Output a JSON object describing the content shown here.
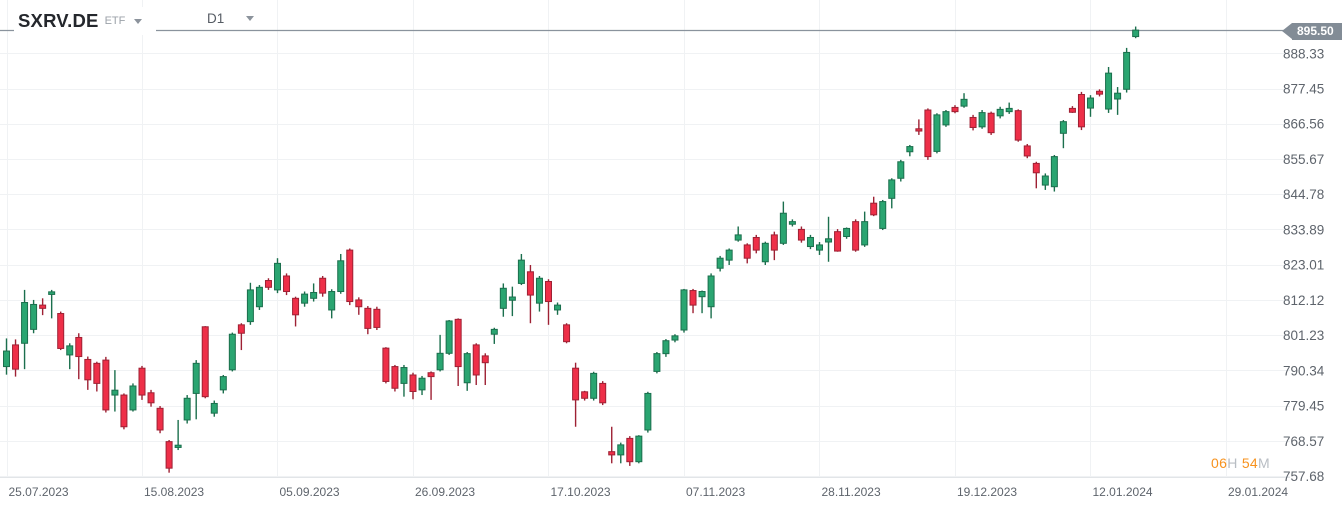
{
  "header": {
    "symbol": "SXRV.DE",
    "instrument_type": "ETF",
    "timeframe": "D1"
  },
  "price_badge": {
    "value": "895.50"
  },
  "countdown": {
    "hours": "06",
    "hours_unit": "H",
    "minutes": "54",
    "minutes_unit": "M"
  },
  "colors": {
    "background": "#FFFFFF",
    "up_fill": "#2AA571",
    "up_border": "#1B6F4D",
    "down_fill": "#EE2F48",
    "down_border": "#9E2134",
    "grid": "#F0F2F4",
    "axis_line": "#E2E5E8",
    "axis_text": "#5E646C",
    "price_line": "#8A939D",
    "badge_bg": "#828C96",
    "badge_text": "#FFFFFF",
    "countdown_accent": "#F7921E",
    "countdown_muted": "#B8BDC3"
  },
  "chart_data": {
    "type": "candlestick",
    "title": "SXRV.DE ETF daily (D1) candlestick chart",
    "current_price": 895.5,
    "y_axis": {
      "ticks": [
        888.33,
        877.45,
        866.56,
        855.67,
        844.78,
        833.89,
        823.01,
        812.12,
        801.23,
        790.34,
        779.45,
        768.57,
        757.68
      ]
    },
    "x_axis": {
      "labels": [
        {
          "text": "25.07.2023",
          "bar_index": 0
        },
        {
          "text": "15.08.2023",
          "bar_index": 15
        },
        {
          "text": "05.09.2023",
          "bar_index": 30
        },
        {
          "text": "26.09.2023",
          "bar_index": 45
        },
        {
          "text": "17.10.2023",
          "bar_index": 60
        },
        {
          "text": "07.11.2023",
          "bar_index": 75
        },
        {
          "text": "28.11.2023",
          "bar_index": 90
        },
        {
          "text": "19.12.2023",
          "bar_index": 105
        },
        {
          "text": "12.01.2024",
          "bar_index": 120
        },
        {
          "text": "29.01.2024",
          "bar_index": 135
        }
      ]
    },
    "candles": [
      {
        "d": "25.07.2023",
        "o": 791.5,
        "h": 800.2,
        "l": 789.0,
        "c": 796.3
      },
      {
        "d": "26.07.2023",
        "o": 798.2,
        "h": 799.9,
        "l": 788.4,
        "c": 790.7
      },
      {
        "d": "27.07.2023",
        "o": 798.7,
        "h": 815.2,
        "l": 790.7,
        "c": 811.3
      },
      {
        "d": "28.07.2023",
        "o": 803.0,
        "h": 812.1,
        "l": 801.8,
        "c": 810.7
      },
      {
        "d": "31.07.2023",
        "o": 810.5,
        "h": 812.6,
        "l": 807.4,
        "c": 809.5
      },
      {
        "d": "01.08.2023",
        "o": 813.8,
        "h": 815.2,
        "l": 806.4,
        "c": 814.6
      },
      {
        "d": "02.08.2023",
        "o": 807.9,
        "h": 808.5,
        "l": 796.6,
        "c": 797.1
      },
      {
        "d": "03.08.2023",
        "o": 795.1,
        "h": 798.7,
        "l": 790.7,
        "c": 797.9
      },
      {
        "d": "04.08.2023",
        "o": 800.5,
        "h": 801.8,
        "l": 787.6,
        "c": 794.6
      },
      {
        "d": "07.08.2023",
        "o": 793.7,
        "h": 794.6,
        "l": 784.3,
        "c": 787.4
      },
      {
        "d": "08.08.2023",
        "o": 792.5,
        "h": 793.0,
        "l": 783.8,
        "c": 786.3
      },
      {
        "d": "09.08.2023",
        "o": 793.5,
        "h": 794.5,
        "l": 777.3,
        "c": 778.1
      },
      {
        "d": "10.08.2023",
        "o": 782.7,
        "h": 790.4,
        "l": 777.6,
        "c": 784.2
      },
      {
        "d": "11.08.2023",
        "o": 782.7,
        "h": 783.2,
        "l": 772.1,
        "c": 772.9
      },
      {
        "d": "14.08.2023",
        "o": 778.1,
        "h": 786.3,
        "l": 777.6,
        "c": 785.5
      },
      {
        "d": "15.08.2023",
        "o": 791.0,
        "h": 791.7,
        "l": 781.2,
        "c": 782.7
      },
      {
        "d": "16.08.2023",
        "o": 783.4,
        "h": 784.3,
        "l": 779.1,
        "c": 780.3
      },
      {
        "d": "17.08.2023",
        "o": 778.6,
        "h": 779.3,
        "l": 770.9,
        "c": 771.9
      },
      {
        "d": "18.08.2023",
        "o": 768.3,
        "h": 768.8,
        "l": 758.7,
        "c": 760.1
      },
      {
        "d": "21.08.2023",
        "o": 766.5,
        "h": 775.0,
        "l": 765.7,
        "c": 767.2
      },
      {
        "d": "22.08.2023",
        "o": 775.0,
        "h": 782.7,
        "l": 773.9,
        "c": 781.7
      },
      {
        "d": "23.08.2023",
        "o": 783.2,
        "h": 793.5,
        "l": 775.2,
        "c": 792.5
      },
      {
        "d": "24.08.2023",
        "o": 803.8,
        "h": 804.0,
        "l": 781.7,
        "c": 782.2
      },
      {
        "d": "25.08.2023",
        "o": 777.1,
        "h": 781.0,
        "l": 776.0,
        "c": 780.1
      },
      {
        "d": "28.08.2023",
        "o": 784.3,
        "h": 788.9,
        "l": 783.2,
        "c": 788.4
      },
      {
        "d": "29.08.2023",
        "o": 790.5,
        "h": 802.0,
        "l": 790.0,
        "c": 801.5
      },
      {
        "d": "30.08.2023",
        "o": 804.4,
        "h": 804.9,
        "l": 796.6,
        "c": 801.8
      },
      {
        "d": "31.08.2023",
        "o": 805.4,
        "h": 817.4,
        "l": 804.4,
        "c": 815.2
      },
      {
        "d": "01.09.2023",
        "o": 810.0,
        "h": 816.7,
        "l": 809.0,
        "c": 816.0
      },
      {
        "d": "04.09.2023",
        "o": 818.1,
        "h": 818.8,
        "l": 815.2,
        "c": 816.0
      },
      {
        "d": "05.09.2023",
        "o": 815.2,
        "h": 825.0,
        "l": 814.2,
        "c": 823.4
      },
      {
        "d": "06.09.2023",
        "o": 819.5,
        "h": 820.3,
        "l": 813.6,
        "c": 814.7
      },
      {
        "d": "07.09.2023",
        "o": 812.6,
        "h": 813.1,
        "l": 803.9,
        "c": 807.5
      },
      {
        "d": "08.09.2023",
        "o": 811.1,
        "h": 814.7,
        "l": 810.0,
        "c": 813.9
      },
      {
        "d": "11.09.2023",
        "o": 812.6,
        "h": 817.2,
        "l": 811.6,
        "c": 814.4
      },
      {
        "d": "12.09.2023",
        "o": 818.8,
        "h": 819.5,
        "l": 813.1,
        "c": 814.2
      },
      {
        "d": "13.09.2023",
        "o": 809.0,
        "h": 815.4,
        "l": 806.4,
        "c": 814.7
      },
      {
        "d": "14.09.2023",
        "o": 814.7,
        "h": 826.3,
        "l": 814.0,
        "c": 824.2
      },
      {
        "d": "15.09.2023",
        "o": 827.5,
        "h": 828.0,
        "l": 810.5,
        "c": 811.6
      },
      {
        "d": "18.09.2023",
        "o": 812.1,
        "h": 812.9,
        "l": 807.5,
        "c": 810.0
      },
      {
        "d": "19.09.2023",
        "o": 809.5,
        "h": 810.2,
        "l": 801.5,
        "c": 803.3
      },
      {
        "d": "20.09.2023",
        "o": 809.2,
        "h": 810.0,
        "l": 802.8,
        "c": 803.6
      },
      {
        "d": "21.09.2023",
        "o": 797.2,
        "h": 797.5,
        "l": 786.3,
        "c": 786.9
      },
      {
        "d": "22.09.2023",
        "o": 791.5,
        "h": 792.0,
        "l": 783.8,
        "c": 784.8
      },
      {
        "d": "25.09.2023",
        "o": 786.3,
        "h": 792.0,
        "l": 782.2,
        "c": 791.2
      },
      {
        "d": "26.09.2023",
        "o": 788.9,
        "h": 789.6,
        "l": 781.4,
        "c": 783.8
      },
      {
        "d": "27.09.2023",
        "o": 784.3,
        "h": 788.6,
        "l": 782.7,
        "c": 787.9
      },
      {
        "d": "28.09.2023",
        "o": 789.6,
        "h": 790.0,
        "l": 781.2,
        "c": 788.4
      },
      {
        "d": "29.09.2023",
        "o": 790.5,
        "h": 801.3,
        "l": 790.0,
        "c": 795.6
      },
      {
        "d": "02.10.2023",
        "o": 795.6,
        "h": 805.9,
        "l": 795.1,
        "c": 805.6
      },
      {
        "d": "03.10.2023",
        "o": 806.1,
        "h": 806.4,
        "l": 785.5,
        "c": 791.5
      },
      {
        "d": "04.10.2023",
        "o": 786.5,
        "h": 796.0,
        "l": 784.0,
        "c": 795.5
      },
      {
        "d": "05.10.2023",
        "o": 798.2,
        "h": 798.7,
        "l": 785.8,
        "c": 788.9
      },
      {
        "d": "06.10.2023",
        "o": 794.8,
        "h": 795.6,
        "l": 785.8,
        "c": 792.7
      },
      {
        "d": "09.10.2023",
        "o": 801.5,
        "h": 803.5,
        "l": 798.5,
        "c": 803.0
      },
      {
        "d": "10.10.2023",
        "o": 809.5,
        "h": 817.2,
        "l": 806.9,
        "c": 815.7
      },
      {
        "d": "11.10.2023",
        "o": 812.0,
        "h": 816.2,
        "l": 807.1,
        "c": 813.0
      },
      {
        "d": "12.10.2023",
        "o": 817.2,
        "h": 826.3,
        "l": 816.7,
        "c": 824.4
      },
      {
        "d": "13.10.2023",
        "o": 820.8,
        "h": 822.9,
        "l": 804.9,
        "c": 813.6
      },
      {
        "d": "16.10.2023",
        "o": 811.1,
        "h": 819.5,
        "l": 808.5,
        "c": 818.8
      },
      {
        "d": "17.10.2023",
        "o": 817.8,
        "h": 818.5,
        "l": 804.4,
        "c": 811.6
      },
      {
        "d": "18.10.2023",
        "o": 809.0,
        "h": 811.3,
        "l": 807.5,
        "c": 810.5
      },
      {
        "d": "19.10.2023",
        "o": 804.4,
        "h": 804.9,
        "l": 798.7,
        "c": 799.2
      },
      {
        "d": "20.10.2023",
        "o": 791.0,
        "h": 792.7,
        "l": 772.9,
        "c": 781.2
      },
      {
        "d": "23.10.2023",
        "o": 783.7,
        "h": 784.0,
        "l": 781.0,
        "c": 781.7
      },
      {
        "d": "24.10.2023",
        "o": 781.7,
        "h": 789.9,
        "l": 781.0,
        "c": 789.4
      },
      {
        "d": "25.10.2023",
        "o": 786.3,
        "h": 787.0,
        "l": 779.6,
        "c": 780.3
      },
      {
        "d": "26.10.2023",
        "o": 765.2,
        "h": 772.9,
        "l": 761.6,
        "c": 764.2
      },
      {
        "d": "27.10.2023",
        "o": 764.2,
        "h": 768.0,
        "l": 761.6,
        "c": 767.3
      },
      {
        "d": "30.10.2023",
        "o": 769.3,
        "h": 770.0,
        "l": 760.8,
        "c": 762.1
      },
      {
        "d": "31.10.2023",
        "o": 762.1,
        "h": 770.3,
        "l": 761.6,
        "c": 770.0
      },
      {
        "d": "01.11.2023",
        "o": 771.9,
        "h": 783.7,
        "l": 771.1,
        "c": 783.2
      },
      {
        "d": "02.11.2023",
        "o": 790.0,
        "h": 796.0,
        "l": 789.4,
        "c": 795.5
      },
      {
        "d": "03.11.2023",
        "o": 795.5,
        "h": 800.0,
        "l": 794.5,
        "c": 799.5
      },
      {
        "d": "06.11.2023",
        "o": 799.7,
        "h": 801.5,
        "l": 799.0,
        "c": 801.0
      },
      {
        "d": "07.11.2023",
        "o": 802.8,
        "h": 815.5,
        "l": 802.0,
        "c": 815.2
      },
      {
        "d": "08.11.2023",
        "o": 815.0,
        "h": 815.5,
        "l": 808.0,
        "c": 810.5
      },
      {
        "d": "09.11.2023",
        "o": 813.1,
        "h": 815.0,
        "l": 808.0,
        "c": 814.7
      },
      {
        "d": "10.11.2023",
        "o": 810.0,
        "h": 820.3,
        "l": 806.4,
        "c": 819.5
      },
      {
        "d": "13.11.2023",
        "o": 821.9,
        "h": 825.7,
        "l": 820.9,
        "c": 825.0
      },
      {
        "d": "14.11.2023",
        "o": 824.4,
        "h": 828.0,
        "l": 822.9,
        "c": 827.5
      },
      {
        "d": "15.11.2023",
        "o": 830.6,
        "h": 834.8,
        "l": 830.1,
        "c": 832.2
      },
      {
        "d": "16.11.2023",
        "o": 829.1,
        "h": 829.6,
        "l": 823.4,
        "c": 825.0
      },
      {
        "d": "17.11.2023",
        "o": 831.4,
        "h": 832.2,
        "l": 826.5,
        "c": 827.5
      },
      {
        "d": "20.11.2023",
        "o": 823.9,
        "h": 830.1,
        "l": 822.9,
        "c": 829.6
      },
      {
        "d": "21.11.2023",
        "o": 832.2,
        "h": 833.2,
        "l": 824.4,
        "c": 827.5
      },
      {
        "d": "22.11.2023",
        "o": 829.6,
        "h": 842.5,
        "l": 829.1,
        "c": 838.9
      },
      {
        "d": "23.11.2023",
        "o": 835.5,
        "h": 837.0,
        "l": 834.8,
        "c": 836.3
      },
      {
        "d": "24.11.2023",
        "o": 833.9,
        "h": 834.8,
        "l": 829.8,
        "c": 830.6
      },
      {
        "d": "27.11.2023",
        "o": 828.6,
        "h": 832.2,
        "l": 827.8,
        "c": 831.4
      },
      {
        "d": "28.11.2023",
        "o": 827.5,
        "h": 830.0,
        "l": 826.0,
        "c": 829.1
      },
      {
        "d": "29.11.2023",
        "o": 830.0,
        "h": 837.8,
        "l": 823.9,
        "c": 831.0
      },
      {
        "d": "30.11.2023",
        "o": 833.2,
        "h": 834.0,
        "l": 827.0,
        "c": 827.2
      },
      {
        "d": "01.12.2023",
        "o": 831.7,
        "h": 834.5,
        "l": 831.0,
        "c": 834.2
      },
      {
        "d": "04.12.2023",
        "o": 836.3,
        "h": 837.0,
        "l": 827.0,
        "c": 827.5
      },
      {
        "d": "05.12.2023",
        "o": 829.1,
        "h": 839.4,
        "l": 828.5,
        "c": 836.3
      },
      {
        "d": "06.12.2023",
        "o": 842.0,
        "h": 844.0,
        "l": 838.0,
        "c": 838.4
      },
      {
        "d": "07.12.2023",
        "o": 834.2,
        "h": 843.0,
        "l": 833.7,
        "c": 842.5
      },
      {
        "d": "08.12.2023",
        "o": 843.5,
        "h": 849.7,
        "l": 840.4,
        "c": 849.2
      },
      {
        "d": "11.12.2023",
        "o": 849.7,
        "h": 855.4,
        "l": 848.7,
        "c": 854.8
      },
      {
        "d": "12.12.2023",
        "o": 857.9,
        "h": 860.0,
        "l": 856.5,
        "c": 859.5
      },
      {
        "d": "13.12.2023",
        "o": 865.0,
        "h": 867.9,
        "l": 863.1,
        "c": 864.3
      },
      {
        "d": "14.12.2023",
        "o": 870.8,
        "h": 871.3,
        "l": 855.4,
        "c": 856.4
      },
      {
        "d": "15.12.2023",
        "o": 858.0,
        "h": 869.8,
        "l": 857.4,
        "c": 869.3
      },
      {
        "d": "18.12.2023",
        "o": 866.2,
        "h": 870.8,
        "l": 865.6,
        "c": 870.3
      },
      {
        "d": "19.12.2023",
        "o": 871.6,
        "h": 872.3,
        "l": 869.8,
        "c": 870.3
      },
      {
        "d": "20.12.2023",
        "o": 872.0,
        "h": 876.0,
        "l": 871.5,
        "c": 874.1
      },
      {
        "d": "21.12.2023",
        "o": 868.5,
        "h": 869.3,
        "l": 864.5,
        "c": 865.4
      },
      {
        "d": "22.12.2023",
        "o": 865.6,
        "h": 870.8,
        "l": 865.0,
        "c": 870.0
      },
      {
        "d": "27.12.2023",
        "o": 869.8,
        "h": 870.3,
        "l": 863.1,
        "c": 863.8
      },
      {
        "d": "28.12.2023",
        "o": 869.0,
        "h": 871.8,
        "l": 868.2,
        "c": 871.0
      },
      {
        "d": "29.12.2023",
        "o": 870.3,
        "h": 873.1,
        "l": 869.6,
        "c": 871.3
      },
      {
        "d": "02.01.2024",
        "o": 870.6,
        "h": 871.0,
        "l": 861.0,
        "c": 861.5
      },
      {
        "d": "03.01.2024",
        "o": 859.7,
        "h": 860.3,
        "l": 855.9,
        "c": 856.6
      },
      {
        "d": "04.01.2024",
        "o": 854.3,
        "h": 854.8,
        "l": 846.6,
        "c": 851.4
      },
      {
        "d": "05.01.2024",
        "o": 847.6,
        "h": 851.2,
        "l": 846.1,
        "c": 850.4
      },
      {
        "d": "08.01.2024",
        "o": 847.1,
        "h": 856.9,
        "l": 845.6,
        "c": 856.4
      },
      {
        "d": "09.01.2024",
        "o": 863.6,
        "h": 867.7,
        "l": 859.0,
        "c": 867.2
      },
      {
        "d": "10.01.2024",
        "o": 871.3,
        "h": 872.0,
        "l": 869.9,
        "c": 870.1
      },
      {
        "d": "11.01.2024",
        "o": 875.6,
        "h": 876.4,
        "l": 864.6,
        "c": 865.6
      },
      {
        "d": "12.01.2024",
        "o": 871.4,
        "h": 875.4,
        "l": 868.7,
        "c": 874.5
      },
      {
        "d": "15.01.2024",
        "o": 876.6,
        "h": 877.2,
        "l": 875.0,
        "c": 875.7
      },
      {
        "d": "16.01.2024",
        "o": 871.1,
        "h": 884.1,
        "l": 869.9,
        "c": 882.2
      },
      {
        "d": "17.01.2024",
        "o": 874.2,
        "h": 877.9,
        "l": 869.3,
        "c": 876.0
      },
      {
        "d": "18.01.2024",
        "o": 877.2,
        "h": 890.0,
        "l": 876.2,
        "c": 888.6
      },
      {
        "d": "19.01.2024",
        "o": 893.5,
        "h": 896.6,
        "l": 893.0,
        "c": 895.5
      }
    ]
  }
}
